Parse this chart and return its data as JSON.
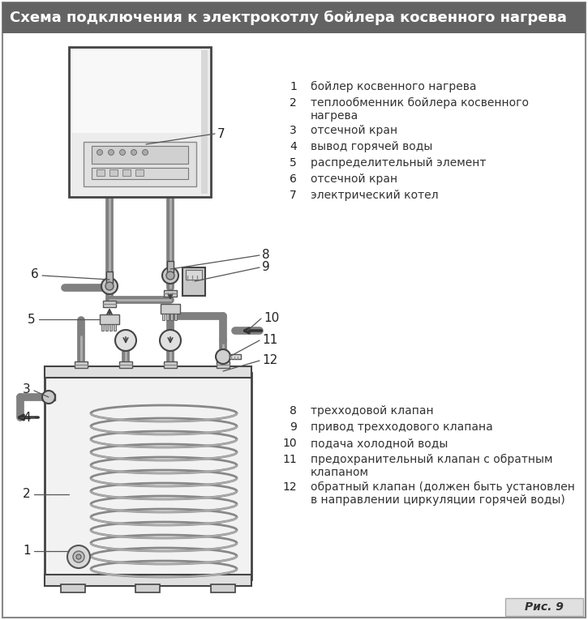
{
  "title": "Схема подключения к электрокотлу бойлера косвенного нагрева",
  "title_bg": "#636363",
  "title_color": "#ffffff",
  "bg_color": "#ffffff",
  "border_color": "#888888",
  "fig_caption": "Рис. 9",
  "labels_top": [
    {
      "num": "1",
      "text": "бойлер косвенного нагрева"
    },
    {
      "num": "2",
      "text": "теплообменник бойлера косвенного\nнагрева"
    },
    {
      "num": "3",
      "text": "отсечной кран"
    },
    {
      "num": "4",
      "text": "вывод горячей воды"
    },
    {
      "num": "5",
      "text": "распределительный элемент"
    },
    {
      "num": "6",
      "text": "отсечной кран"
    },
    {
      "num": "7",
      "text": "электрический котел"
    }
  ],
  "labels_bottom": [
    {
      "num": "8",
      "text": "трехходовой клапан"
    },
    {
      "num": "9",
      "text": "привод трехходового клапана"
    },
    {
      "num": "10",
      "text": "подача холодной воды"
    },
    {
      "num": "11",
      "text": "предохранительный клапан с обратным\nклапаном"
    },
    {
      "num": "12",
      "text": "обратный клапан (должен быть установлен\nв направлении циркуляции горячей воды)"
    }
  ]
}
